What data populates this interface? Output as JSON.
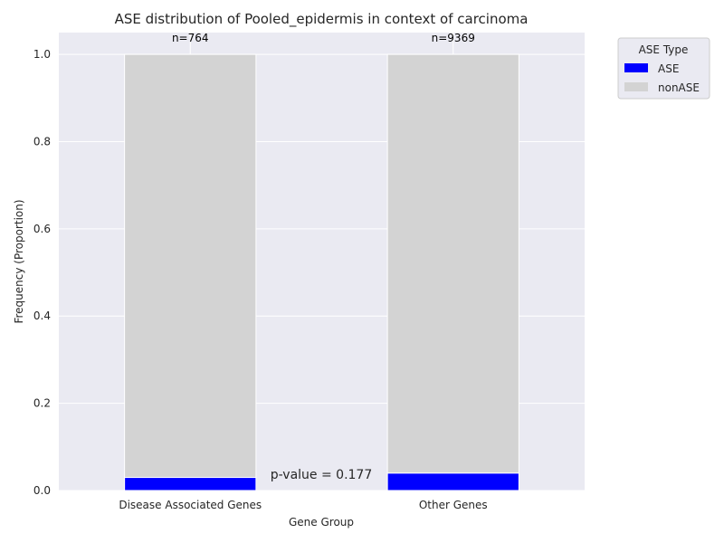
{
  "chart_data": {
    "type": "bar",
    "stacked": true,
    "title": "ASE distribution of Pooled_epidermis in context of carcinoma",
    "xlabel": "Gene Group",
    "ylabel": "Frequency (Proportion)",
    "categories": [
      "Disease Associated Genes",
      "Other Genes"
    ],
    "bar_labels": [
      "n=764",
      "n=9369"
    ],
    "series": [
      {
        "name": "ASE",
        "color": "#0000ff",
        "values": [
          0.03,
          0.04
        ]
      },
      {
        "name": "nonASE",
        "color": "#d3d3d3",
        "values": [
          0.97,
          0.96
        ]
      }
    ],
    "ylim": [
      0,
      1.05
    ],
    "yticks": [
      "0.0",
      "0.2",
      "0.4",
      "0.6",
      "0.8",
      "1.0"
    ],
    "annotation": "p-value = 0.177",
    "legend": {
      "title": "ASE Type",
      "placement": "outside-top-right"
    },
    "grid": true,
    "background": "#eaeaf2"
  }
}
